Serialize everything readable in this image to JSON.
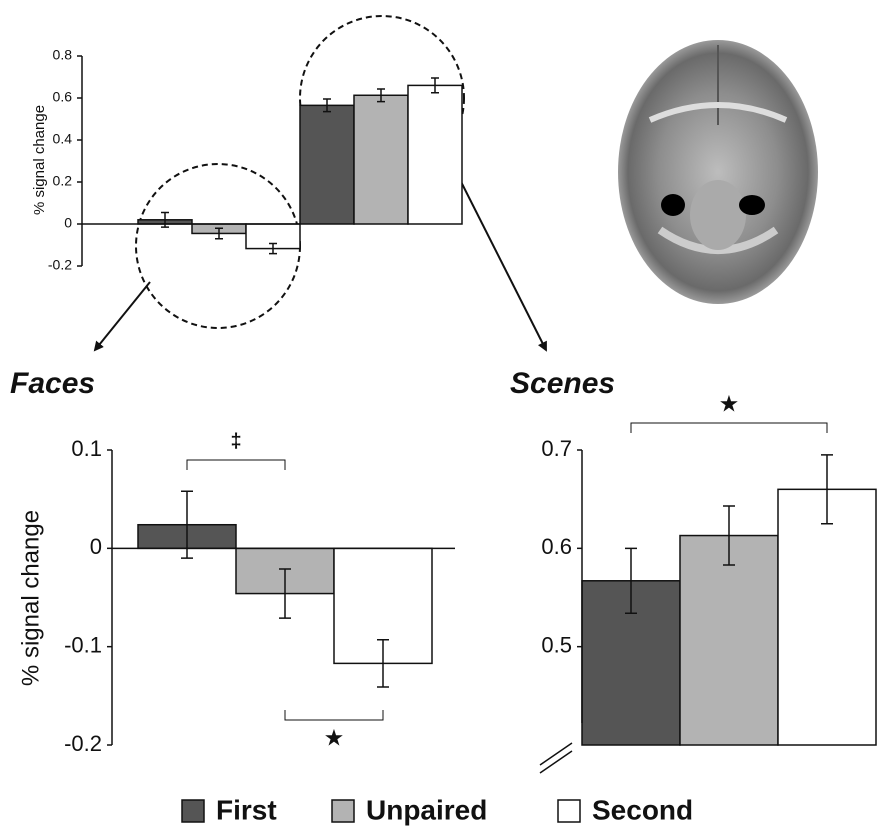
{
  "chart_data": [
    {
      "type": "bar",
      "y_label": "% signal change",
      "categories": [
        null,
        null
      ],
      "ylim": [
        -0.2,
        0.8
      ],
      "yticks": [
        -0.2,
        0,
        0.2,
        0.4,
        0.6,
        0.8
      ],
      "series": [
        {
          "name": "First",
          "color": "#555555",
          "values": [
            0.02,
            0.565
          ],
          "errors": [
            0.035,
            0.03
          ]
        },
        {
          "name": "Unpaired",
          "color": "#b3b3b3",
          "values": [
            -0.045,
            0.613
          ],
          "errors": [
            0.025,
            0.03
          ]
        },
        {
          "name": "Second",
          "color": "#ffffff",
          "values": [
            -0.117,
            0.66
          ],
          "errors": [
            0.024,
            0.035
          ]
        }
      ]
    },
    {
      "type": "bar",
      "title": "Faces",
      "y_label": "% signal change",
      "categories": [
        null
      ],
      "ylim": [
        -0.2,
        0.1
      ],
      "yticks": [
        -0.2,
        -0.1,
        0,
        0.1
      ],
      "series": [
        {
          "color": "#555555",
          "values": [
            0.024
          ],
          "errors": [
            0.034
          ]
        },
        {
          "color": "#b3b3b3",
          "values": [
            -0.046
          ],
          "errors": [
            0.025
          ]
        },
        {
          "color": "#ffffff",
          "values": [
            -0.117
          ],
          "errors": [
            0.024
          ]
        }
      ],
      "annotations": [
        {
          "text": "‡"
        },
        {
          "text": "★"
        }
      ]
    },
    {
      "type": "bar",
      "title": "Scenes",
      "categories": [
        null
      ],
      "ylim": [
        0.4,
        0.7
      ],
      "yticks": [
        0.5,
        0.6,
        0.7
      ],
      "series": [
        {
          "color": "#555555",
          "values": [
            0.567
          ],
          "errors": [
            0.033
          ]
        },
        {
          "color": "#b3b3b3",
          "values": [
            0.613
          ],
          "errors": [
            0.03
          ]
        },
        {
          "color": "#ffffff",
          "values": [
            0.66
          ],
          "errors": [
            0.035
          ]
        }
      ],
      "annotations": [
        {
          "text": "★"
        }
      ]
    }
  ]
}
